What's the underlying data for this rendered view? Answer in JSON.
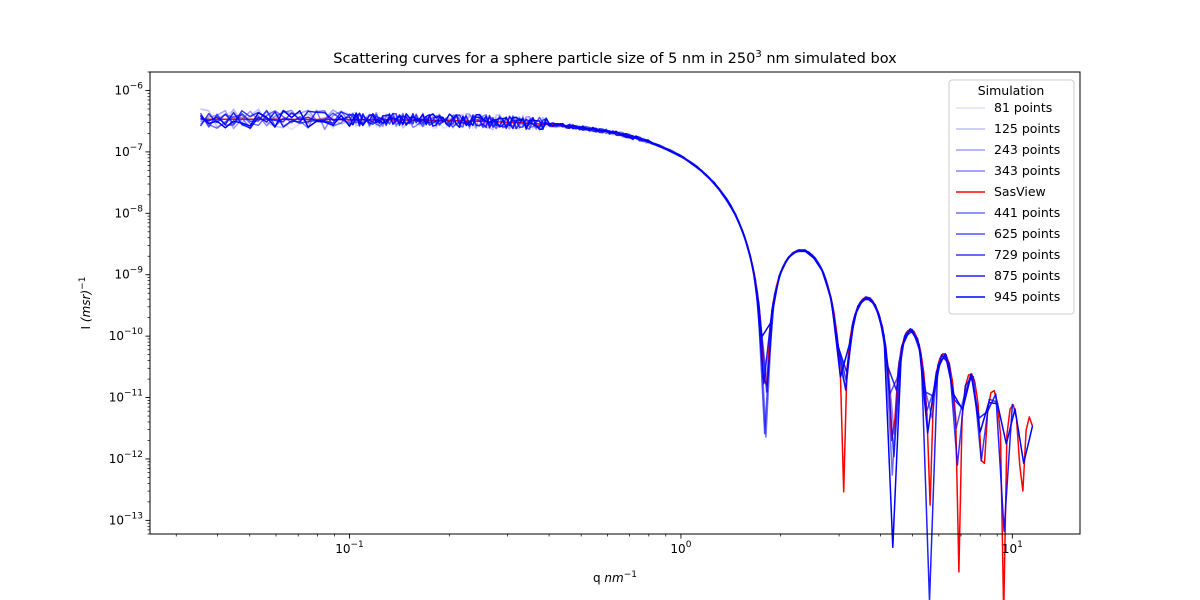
{
  "chart_data": {
    "type": "line",
    "title_prefix": "Scattering curves for a sphere particle size of 5 nm in 250",
    "title_sup": "3",
    "title_suffix": " nm simulated box",
    "xlabel_prefix": "q ",
    "xlabel_unit": "nm",
    "xlabel_sup": "−1",
    "ylabel_prefix": "I ",
    "ylabel_unit": "(msr)",
    "ylabel_sup": "−1",
    "xscale": "log",
    "yscale": "log",
    "xlim": [
      0.025,
      16
    ],
    "ylim": [
      6e-14,
      2e-06
    ],
    "x_ticks": [
      {
        "value": 0.1,
        "base": "10",
        "exp": "−1"
      },
      {
        "value": 1,
        "base": "10",
        "exp": "0"
      },
      {
        "value": 10,
        "base": "10",
        "exp": "1"
      }
    ],
    "y_ticks": [
      {
        "value": 1e-13,
        "base": "10",
        "exp": "−13"
      },
      {
        "value": 1e-12,
        "base": "10",
        "exp": "−12"
      },
      {
        "value": 1e-11,
        "base": "10",
        "exp": "−11"
      },
      {
        "value": 1e-10,
        "base": "10",
        "exp": "−10"
      },
      {
        "value": 1e-09,
        "base": "10",
        "exp": "−9"
      },
      {
        "value": 1e-08,
        "base": "10",
        "exp": "−8"
      },
      {
        "value": 1e-07,
        "base": "10",
        "exp": "−7"
      },
      {
        "value": 1e-06,
        "base": "10",
        "exp": "−6"
      }
    ],
    "legend": {
      "title": "Simulation",
      "placement": "upper-right"
    },
    "series": [
      {
        "name": "81 points",
        "color": "#0000ff",
        "opacity": 0.12,
        "qmin": 0.0355,
        "qmax": 1.0,
        "seed": 3,
        "noise": 0.55
      },
      {
        "name": "125 points",
        "color": "#0000ff",
        "opacity": 0.25,
        "qmin": 0.0355,
        "qmax": 1.5,
        "seed": 7,
        "noise": 0.55
      },
      {
        "name": "243 points",
        "color": "#0000ff",
        "opacity": 0.38,
        "qmin": 0.0355,
        "qmax": 1.5,
        "seed": 11,
        "noise": 0.5
      },
      {
        "name": "343 points",
        "color": "#0000ff",
        "opacity": 0.48,
        "qmin": 0.0355,
        "qmax": 5.0,
        "seed": 13,
        "noise": 0.5
      },
      {
        "name": "SasView",
        "color": "#ff0000",
        "opacity": 1,
        "qmin": 0.0355,
        "qmax": 11.5,
        "seed": 0,
        "noise": 0
      },
      {
        "name": "441 points",
        "color": "#0000ff",
        "opacity": 0.58,
        "qmin": 0.0355,
        "qmax": 6.0,
        "seed": 17,
        "noise": 0.45
      },
      {
        "name": "625 points",
        "color": "#0000ff",
        "opacity": 0.68,
        "qmin": 0.0355,
        "qmax": 7.5,
        "seed": 19,
        "noise": 0.45
      },
      {
        "name": "729 points",
        "color": "#0000ff",
        "opacity": 0.78,
        "qmin": 0.0355,
        "qmax": 9.0,
        "seed": 23,
        "noise": 0.45
      },
      {
        "name": "875 points",
        "color": "#0000ff",
        "opacity": 0.88,
        "qmin": 0.0355,
        "qmax": 10.0,
        "seed": 29,
        "noise": 0.45
      },
      {
        "name": "945 points",
        "color": "#0000ff",
        "opacity": 1.0,
        "qmin": 0.0355,
        "qmax": 11.5,
        "seed": 31,
        "noise": 0.45
      }
    ]
  }
}
